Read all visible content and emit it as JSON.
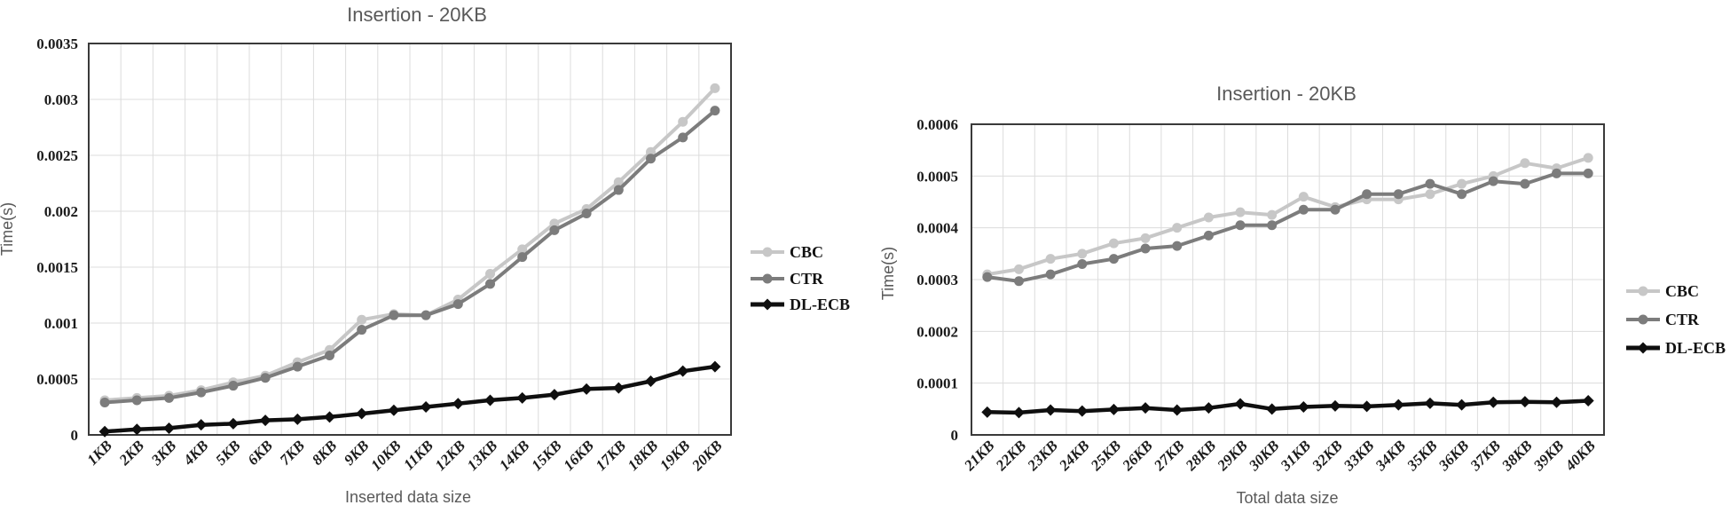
{
  "colors": {
    "cbc": "#c7c7c7",
    "ctr": "#7c7c7c",
    "dlecb": "#0f0f0f",
    "grid": "#dcdcdc",
    "frame": "#3a3a3a",
    "title_text": "#595959",
    "tick_text": "#1b1b1b"
  },
  "chart_data": [
    {
      "type": "line",
      "title": "Insertion - 20KB",
      "xlabel": "Inserted data size",
      "ylabel": "Time(s)",
      "ylim": [
        0,
        0.0035
      ],
      "ytick_labels": [
        "0",
        "0.0005",
        "0.001",
        "0.0015",
        "0.002",
        "0.0025",
        "0.003",
        "0.0035"
      ],
      "grid": true,
      "legend_position": "right",
      "categories": [
        "1KB",
        "2KB",
        "3KB",
        "4KB",
        "5KB",
        "6KB",
        "7KB",
        "8KB",
        "9KB",
        "10KB",
        "11KB",
        "12KB",
        "13KB",
        "14KB",
        "15KB",
        "16KB",
        "17KB",
        "18KB",
        "19KB",
        "20KB"
      ],
      "series": [
        {
          "name": "CBC",
          "color_key": "cbc",
          "marker": "circle",
          "values": [
            0.00031,
            0.00033,
            0.00035,
            0.0004,
            0.00047,
            0.00053,
            0.00065,
            0.00076,
            0.00103,
            0.00108,
            0.00107,
            0.00121,
            0.00144,
            0.00166,
            0.00189,
            0.00202,
            0.00226,
            0.00253,
            0.0028,
            0.0031
          ]
        },
        {
          "name": "CTR",
          "color_key": "ctr",
          "marker": "circle",
          "values": [
            0.00029,
            0.00031,
            0.00033,
            0.00038,
            0.00044,
            0.00051,
            0.00061,
            0.00071,
            0.00094,
            0.00107,
            0.00107,
            0.00117,
            0.00135,
            0.00159,
            0.00183,
            0.00198,
            0.00219,
            0.00247,
            0.00266,
            0.0029
          ]
        },
        {
          "name": "DL-ECB",
          "color_key": "dlecb",
          "marker": "diamond",
          "values": [
            3e-05,
            5e-05,
            6e-05,
            9e-05,
            0.0001,
            0.00013,
            0.00014,
            0.00016,
            0.00019,
            0.00022,
            0.00025,
            0.00028,
            0.00031,
            0.00033,
            0.00036,
            0.00041,
            0.00042,
            0.00048,
            0.00057,
            0.00061
          ]
        }
      ]
    },
    {
      "type": "line",
      "title": "Insertion - 20KB",
      "xlabel": "Total data size",
      "ylabel": "Time(s)",
      "ylim": [
        0,
        0.0006
      ],
      "ytick_labels": [
        "0",
        "0.0001",
        "0.0002",
        "0.0003",
        "0.0004",
        "0.0005",
        "0.0006"
      ],
      "grid": true,
      "legend_position": "right",
      "categories": [
        "21KB",
        "22KB",
        "23KB",
        "24KB",
        "25KB",
        "26KB",
        "27KB",
        "28KB",
        "29KB",
        "30KB",
        "31KB",
        "32KB",
        "33KB",
        "34KB",
        "35KB",
        "36KB",
        "37KB",
        "38KB",
        "39KB",
        "40KB"
      ],
      "series": [
        {
          "name": "CBC",
          "color_key": "cbc",
          "marker": "circle",
          "values": [
            0.00031,
            0.00032,
            0.00034,
            0.00035,
            0.00037,
            0.00038,
            0.0004,
            0.00042,
            0.00043,
            0.000425,
            0.00046,
            0.00044,
            0.000455,
            0.000455,
            0.000465,
            0.000485,
            0.0005,
            0.000525,
            0.000515,
            0.000535
          ]
        },
        {
          "name": "CTR",
          "color_key": "ctr",
          "marker": "circle",
          "values": [
            0.000305,
            0.000297,
            0.00031,
            0.00033,
            0.00034,
            0.00036,
            0.000365,
            0.000385,
            0.000405,
            0.000405,
            0.000435,
            0.000435,
            0.000465,
            0.000465,
            0.000485,
            0.000465,
            0.00049,
            0.000485,
            0.000505,
            0.000505
          ]
        },
        {
          "name": "DL-ECB",
          "color_key": "dlecb",
          "marker": "diamond",
          "values": [
            4.4e-05,
            4.3e-05,
            4.8e-05,
            4.6e-05,
            4.9e-05,
            5.2e-05,
            4.8e-05,
            5.2e-05,
            6e-05,
            5e-05,
            5.4e-05,
            5.6e-05,
            5.5e-05,
            5.8e-05,
            6.1e-05,
            5.8e-05,
            6.3e-05,
            6.4e-05,
            6.3e-05,
            6.6e-05
          ]
        }
      ]
    }
  ]
}
